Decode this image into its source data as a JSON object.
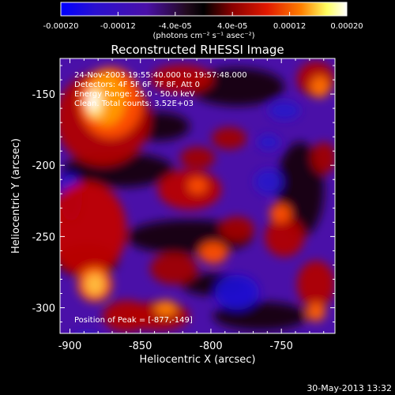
{
  "chart_data": {
    "type": "heatmap",
    "title": "Reconstructed RHESSI Image",
    "xlabel": "Heliocentric X (arcsec)",
    "ylabel": "Heliocentric Y (arcsec)",
    "xlim": [
      -907,
      -712
    ],
    "ylim": [
      -318,
      -125
    ],
    "x_ticks": [
      -900,
      -850,
      -800,
      -750
    ],
    "y_ticks": [
      -150,
      -200,
      -250,
      -300
    ],
    "x_tick_labels": [
      "-900",
      "-850",
      "-800",
      "-750"
    ],
    "y_tick_labels": [
      "-150",
      "-200",
      "-250",
      "-300"
    ],
    "colorbar": {
      "range": [
        -0.0002,
        0.0002
      ],
      "ticks": [
        -0.0002,
        -0.00012,
        -4e-05,
        4e-05,
        0.00012,
        0.0002
      ],
      "tick_labels": [
        "-0.00020",
        "-0.00012",
        "-4.0e-05",
        "4.0e-05",
        "0.00012",
        "0.00020"
      ],
      "unit_label": "(photons cm⁻² s⁻¹ asec⁻²)",
      "colors": [
        "#0000ff",
        "#4a10a8",
        "#220a1e",
        "#000000",
        "#8a0000",
        "#e01800",
        "#ff7f00",
        "#ffff60",
        "#ffffff"
      ]
    },
    "annotations": [
      "24-Nov-2003 19:55:40.000 to 19:57:48.000",
      "Detectors: 4F 5F 6F 7F 8F, Att 0",
      "Energy Range: 25.0 - 50.0 keV",
      "Clean. Total counts: 3.52E+03",
      "Position of Peak = [-877,-149]"
    ],
    "peak": {
      "x": -877,
      "y": -149
    },
    "grid": false
  },
  "footer_date": "30-May-2013 13:32"
}
